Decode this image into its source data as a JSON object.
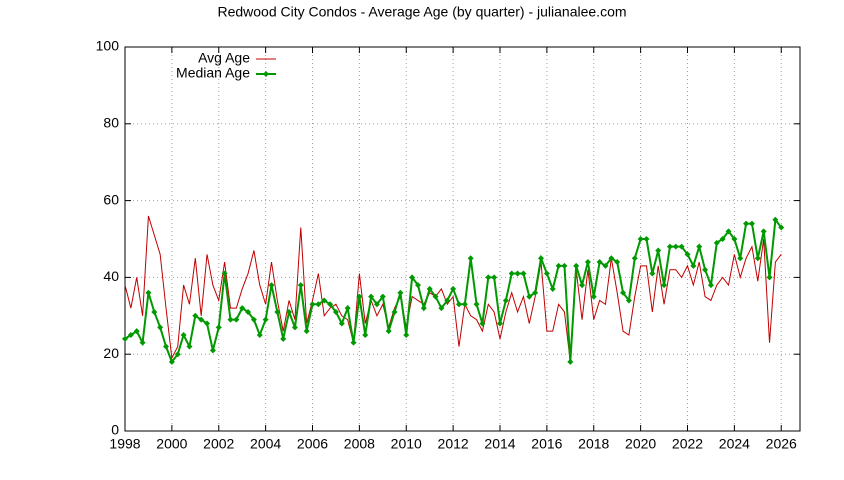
{
  "chart_data": {
    "type": "line",
    "title": "Redwood City Condos - Average Age (by quarter) - julianalee.com",
    "x": [
      1998,
      1998.25,
      1998.5,
      1998.75,
      1999,
      1999.25,
      1999.5,
      1999.75,
      2000,
      2000.25,
      2000.5,
      2000.75,
      2001,
      2001.25,
      2001.5,
      2001.75,
      2002,
      2002.25,
      2002.5,
      2002.75,
      2003,
      2003.25,
      2003.5,
      2003.75,
      2004,
      2004.25,
      2004.5,
      2004.75,
      2005,
      2005.25,
      2005.5,
      2005.75,
      2006,
      2006.25,
      2006.5,
      2006.75,
      2007,
      2007.25,
      2007.5,
      2007.75,
      2008,
      2008.25,
      2008.5,
      2008.75,
      2009,
      2009.25,
      2009.5,
      2009.75,
      2010,
      2010.25,
      2010.5,
      2010.75,
      2011,
      2011.25,
      2011.5,
      2011.75,
      2012,
      2012.25,
      2012.5,
      2012.75,
      2013,
      2013.25,
      2013.5,
      2013.75,
      2014,
      2014.25,
      2014.5,
      2014.75,
      2015,
      2015.25,
      2015.5,
      2015.75,
      2016,
      2016.25,
      2016.5,
      2016.75,
      2017,
      2017.25,
      2017.5,
      2017.75,
      2018,
      2018.25,
      2018.5,
      2018.75,
      2019,
      2019.25,
      2019.5,
      2019.75,
      2020,
      2020.25,
      2020.5,
      2020.75,
      2021,
      2021.25,
      2021.5,
      2021.75,
      2022,
      2022.25,
      2022.5,
      2022.75,
      2023,
      2023.25,
      2023.5,
      2023.75,
      2024,
      2024.25,
      2024.5,
      2024.75,
      2025,
      2025.25,
      2025.5,
      2025.75,
      2026
    ],
    "series": [
      {
        "name": "Avg Age",
        "color": "#c00000",
        "markers": false,
        "values": [
          38,
          32,
          40,
          30,
          56,
          51,
          46,
          32,
          19,
          22,
          38,
          33,
          45,
          30,
          46,
          38,
          34,
          44,
          32,
          32,
          37,
          41,
          47,
          38,
          33,
          44,
          34,
          26,
          34,
          29,
          53,
          28,
          34,
          41,
          30,
          32,
          33,
          30,
          29,
          23,
          41,
          28,
          34,
          30,
          33,
          27,
          32,
          35,
          27,
          35,
          34,
          33,
          36,
          35,
          37,
          33,
          35,
          22,
          33,
          30,
          29,
          26,
          33,
          31,
          24,
          31,
          36,
          31,
          35,
          28,
          35,
          44,
          26,
          26,
          33,
          31,
          18,
          42,
          29,
          42,
          29,
          34,
          33,
          45,
          36,
          26,
          25,
          35,
          43,
          43,
          31,
          43,
          33,
          42,
          42,
          40,
          43,
          38,
          44,
          35,
          34,
          38,
          40,
          38,
          46,
          40,
          45,
          48,
          39,
          50,
          23,
          44,
          46
        ]
      },
      {
        "name": "Median Age",
        "color": "#009900",
        "markers": true,
        "values": [
          24,
          25,
          26,
          23,
          36,
          31,
          27,
          22,
          18,
          20,
          25,
          22,
          30,
          29,
          28,
          21,
          27,
          41,
          29,
          29,
          32,
          31,
          29,
          25,
          29,
          38,
          31,
          24,
          31,
          27,
          38,
          26,
          33,
          33,
          34,
          33,
          31,
          28,
          32,
          23,
          35,
          25,
          35,
          33,
          35,
          26,
          31,
          36,
          25,
          40,
          38,
          32,
          37,
          35,
          32,
          34,
          37,
          33,
          33,
          45,
          33,
          28,
          40,
          40,
          28,
          34,
          41,
          41,
          41,
          35,
          36,
          45,
          41,
          37,
          43,
          43,
          18,
          43,
          38,
          44,
          35,
          44,
          43,
          45,
          44,
          36,
          34,
          45,
          50,
          50,
          41,
          47,
          38,
          48,
          48,
          48,
          46,
          43,
          48,
          42,
          38,
          49,
          50,
          52,
          50,
          45,
          54,
          54,
          45,
          52,
          40,
          55,
          53
        ]
      }
    ],
    "xlim": [
      1998,
      2026.8
    ],
    "ylim": [
      0,
      100
    ],
    "xticks": [
      1998,
      2000,
      2002,
      2004,
      2006,
      2008,
      2010,
      2012,
      2014,
      2016,
      2018,
      2020,
      2022,
      2024,
      2026
    ],
    "yticks": [
      0,
      20,
      40,
      60,
      80,
      100
    ],
    "grid": true,
    "legend": "top-left"
  }
}
